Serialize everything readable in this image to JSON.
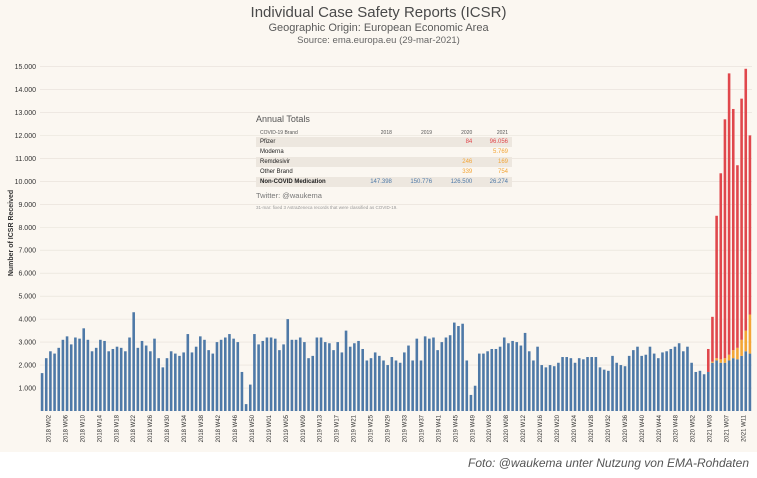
{
  "header": {
    "title": "Individual Case Safety Reports (ICSR)",
    "subtitle": "Geographic Origin: European Economic Area",
    "source": "Source: ema.europa.eu (29-mar-2021)"
  },
  "annual_totals": {
    "title": "Annual Totals",
    "columns": [
      "COVID-19 Brand",
      "2018",
      "2019",
      "2020",
      "2021"
    ],
    "rows": [
      {
        "label": "Pfizer",
        "values": [
          "",
          "",
          "84",
          "96.056"
        ],
        "color": "red"
      },
      {
        "label": "Moderna",
        "values": [
          "",
          "",
          "",
          "5.769"
        ],
        "color": "orange"
      },
      {
        "label": "Remdesivir",
        "values": [
          "",
          "",
          "246",
          "169"
        ],
        "color": "orange"
      },
      {
        "label": "Other Brand",
        "values": [
          "",
          "",
          "339",
          "754"
        ],
        "color": "red"
      },
      {
        "label": "Non-COVID Medication",
        "values": [
          "147.398",
          "150.776",
          "126.500",
          "26.274"
        ],
        "color": "blue"
      }
    ],
    "twitter": "Twitter: @waukema",
    "note": "31-mar: fixed 3 AstraZeneca records that were classified as COVID-19."
  },
  "photo_credit": "Foto: @waukema unter Nutzung von EMA-Rohdaten",
  "colors": {
    "non_covid": "#4e79a7",
    "covid_orange": "#f3a536",
    "covid_red": "#e0474c",
    "background": "#fbf7f1"
  },
  "chart_data": {
    "type": "bar",
    "stacked": true,
    "ylabel": "Number of ICSR Received",
    "ylim": [
      0,
      15500
    ],
    "yticks": [
      1000,
      2000,
      3000,
      4000,
      5000,
      6000,
      7000,
      8000,
      9000,
      10000,
      11000,
      12000,
      13000,
      14000,
      15000
    ],
    "ytick_labels": [
      "1.000",
      "2.000",
      "3.000",
      "4.000",
      "5.000",
      "6.000",
      "7.000",
      "8.000",
      "9.000",
      "10.000",
      "11.000",
      "12.000",
      "13.000",
      "14.000",
      "15.000"
    ],
    "x_tick_labels": [
      "2018 W02",
      "2018 W06",
      "2018 W10",
      "2018 W14",
      "2018 W18",
      "2018 W22",
      "2018 W26",
      "2018 W30",
      "2018 W34",
      "2018 W38",
      "2018 W42",
      "2018 W46",
      "2018 W50",
      "2019 W01",
      "2019 W05",
      "2019 W09",
      "2019 W13",
      "2019 W17",
      "2019 W21",
      "2019 W25",
      "2019 W29",
      "2019 W33",
      "2019 W37",
      "2019 W41",
      "2019 W45",
      "2019 W49",
      "2020 W03",
      "2020 W08",
      "2020 W12",
      "2020 W16",
      "2020 W20",
      "2020 W24",
      "2020 W28",
      "2020 W32",
      "2020 W36",
      "2020 W40",
      "2020 W44",
      "2020 W48",
      "2020 W52",
      "2021 W03",
      "2021 W07",
      "2021 W11"
    ],
    "series": [
      {
        "name": "Non-COVID Medication",
        "color": "#4e79a7",
        "values": [
          1650,
          2300,
          2600,
          2500,
          2750,
          3100,
          3250,
          2900,
          3200,
          3150,
          3600,
          3100,
          2600,
          2750,
          3100,
          3050,
          2600,
          2700,
          2800,
          2750,
          2600,
          3200,
          4300,
          2750,
          3050,
          2850,
          2600,
          3150,
          2300,
          1900,
          2300,
          2600,
          2500,
          2400,
          2550,
          3350,
          2550,
          2800,
          3250,
          3100,
          2650,
          2500,
          3000,
          3100,
          3200,
          3350,
          3150,
          3000,
          1700,
          300,
          1150,
          3350,
          2900,
          3050,
          3200,
          3200,
          3150,
          2650,
          2900,
          4000,
          3100,
          3100,
          3200,
          3000,
          2300,
          2400,
          3200,
          3200,
          3000,
          2950,
          2650,
          3000,
          2550,
          3500,
          2800,
          2950,
          3050,
          2700,
          2200,
          2300,
          2550,
          2400,
          2200,
          2000,
          2350,
          2200,
          2100,
          2550,
          2850,
          2200,
          3150,
          2200,
          3250,
          3150,
          3200,
          2650,
          3000,
          3200,
          3300,
          3850,
          3700,
          3800,
          2200,
          700,
          1100,
          2500,
          2500,
          2600,
          2700,
          2700,
          2800,
          3200,
          2950,
          3050,
          3000,
          2850,
          3400,
          2600,
          2200,
          2800,
          2000,
          1900,
          2000,
          1950,
          2100,
          2350,
          2350,
          2300,
          2100,
          2300,
          2250,
          2350,
          2350,
          2350,
          1900,
          1800,
          1750,
          2400,
          2100,
          2000,
          1950,
          2400,
          2650,
          2800,
          2400,
          2450,
          2800,
          2500,
          2300,
          2550,
          2600,
          2700,
          2800,
          2950,
          2600,
          2800,
          2100,
          1700,
          1750,
          1600,
          1700,
          2100,
          2200,
          2100,
          2100,
          2200,
          2300,
          2250,
          2400,
          2600,
          2500
        ]
      },
      {
        "name": "Moderna / Remdesivir",
        "color": "#f3a536",
        "values": [
          0,
          0,
          0,
          0,
          0,
          0,
          0,
          0,
          0,
          0,
          0,
          0,
          0,
          0,
          0,
          0,
          0,
          0,
          0,
          0,
          0,
          0,
          0,
          0,
          0,
          0,
          0,
          0,
          0,
          0,
          0,
          0,
          0,
          0,
          0,
          0,
          0,
          0,
          0,
          0,
          0,
          0,
          0,
          0,
          0,
          0,
          0,
          0,
          0,
          0,
          0,
          0,
          0,
          0,
          0,
          0,
          0,
          0,
          0,
          0,
          0,
          0,
          0,
          0,
          0,
          0,
          0,
          0,
          0,
          0,
          0,
          0,
          0,
          0,
          0,
          0,
          0,
          0,
          0,
          0,
          0,
          0,
          0,
          0,
          0,
          0,
          0,
          0,
          0,
          0,
          0,
          0,
          0,
          0,
          0,
          0,
          0,
          0,
          0,
          0,
          0,
          0,
          0,
          0,
          0,
          0,
          0,
          0,
          0,
          0,
          0,
          0,
          0,
          0,
          0,
          0,
          0,
          0,
          0,
          0,
          0,
          0,
          0,
          0,
          0,
          0,
          0,
          0,
          0,
          0,
          0,
          0,
          0,
          0,
          0,
          0,
          0,
          0,
          0,
          0,
          0,
          0,
          0,
          0,
          0,
          0,
          0,
          0,
          0,
          0,
          0,
          0,
          0,
          0,
          0,
          0,
          0,
          0,
          0,
          0,
          0,
          50,
          100,
          150,
          200,
          250,
          350,
          500,
          700,
          900,
          1700
        ]
      },
      {
        "name": "Pfizer / Other Brand",
        "color": "#e0474c",
        "values": [
          0,
          0,
          0,
          0,
          0,
          0,
          0,
          0,
          0,
          0,
          0,
          0,
          0,
          0,
          0,
          0,
          0,
          0,
          0,
          0,
          0,
          0,
          0,
          0,
          0,
          0,
          0,
          0,
          0,
          0,
          0,
          0,
          0,
          0,
          0,
          0,
          0,
          0,
          0,
          0,
          0,
          0,
          0,
          0,
          0,
          0,
          0,
          0,
          0,
          0,
          0,
          0,
          0,
          0,
          0,
          0,
          0,
          0,
          0,
          0,
          0,
          0,
          0,
          0,
          0,
          0,
          0,
          0,
          0,
          0,
          0,
          0,
          0,
          0,
          0,
          0,
          0,
          0,
          0,
          0,
          0,
          0,
          0,
          0,
          0,
          0,
          0,
          0,
          0,
          0,
          0,
          0,
          0,
          0,
          0,
          0,
          0,
          0,
          0,
          0,
          0,
          0,
          0,
          0,
          0,
          0,
          0,
          0,
          0,
          0,
          0,
          0,
          0,
          0,
          0,
          0,
          0,
          0,
          0,
          0,
          0,
          0,
          0,
          0,
          0,
          0,
          0,
          0,
          0,
          0,
          0,
          0,
          0,
          0,
          0,
          0,
          0,
          0,
          0,
          0,
          0,
          0,
          0,
          0,
          0,
          0,
          0,
          0,
          0,
          0,
          0,
          0,
          0,
          0,
          0,
          0,
          0,
          0,
          0,
          0,
          1000,
          1950,
          6200,
          8100,
          10400,
          12250,
          10500,
          7950,
          10500,
          11400,
          7800
        ]
      }
    ]
  }
}
